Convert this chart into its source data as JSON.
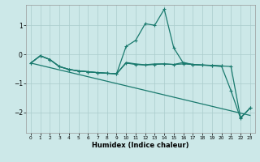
{
  "xlabel": "Humidex (Indice chaleur)",
  "bg_color": "#cce8e8",
  "grid_color": "#aacccc",
  "line_color": "#1a7a6e",
  "xlim": [
    -0.5,
    23.5
  ],
  "ylim": [
    -2.7,
    1.7
  ],
  "yticks": [
    -2,
    -1,
    0,
    1
  ],
  "xticks": [
    0,
    1,
    2,
    3,
    4,
    5,
    6,
    7,
    8,
    9,
    10,
    11,
    12,
    13,
    14,
    15,
    16,
    17,
    18,
    19,
    20,
    21,
    22,
    23
  ],
  "line1_x": [
    0,
    1,
    2,
    3,
    4,
    5,
    6,
    7,
    8,
    9,
    10,
    11,
    12,
    13,
    14,
    15,
    16,
    17,
    18,
    19,
    20,
    21,
    22,
    23
  ],
  "line1_y": [
    -0.3,
    -0.05,
    -0.18,
    -0.42,
    -0.52,
    -0.57,
    -0.6,
    -0.63,
    -0.65,
    -0.67,
    -0.3,
    -0.35,
    -0.37,
    -0.35,
    -0.33,
    -0.35,
    -0.33,
    -0.35,
    -0.37,
    -0.38,
    -0.4,
    -0.42,
    -2.18,
    -1.85
  ],
  "line2_x": [
    0,
    1,
    2,
    3,
    4,
    5,
    6,
    7,
    8,
    9,
    10,
    11,
    12,
    13,
    14,
    15,
    16,
    17,
    18,
    19,
    20,
    21,
    22,
    23
  ],
  "line2_y": [
    -0.3,
    -0.05,
    -0.18,
    -0.42,
    -0.52,
    -0.57,
    -0.6,
    -0.63,
    -0.65,
    -0.67,
    0.27,
    0.48,
    1.05,
    1.0,
    1.55,
    0.22,
    -0.3,
    -0.35,
    -0.37,
    -0.38,
    -0.4,
    -1.25,
    -2.2,
    -1.85
  ],
  "line3_x": [
    0,
    1,
    2,
    3,
    4,
    5,
    6,
    7,
    8,
    9,
    10,
    11,
    12,
    13,
    14,
    15,
    16,
    17,
    18,
    19,
    20
  ],
  "line3_y": [
    -0.3,
    -0.05,
    -0.18,
    -0.42,
    -0.52,
    -0.57,
    -0.6,
    -0.63,
    -0.65,
    -0.67,
    -0.28,
    -0.33,
    -0.36,
    -0.33,
    -0.33,
    -0.35,
    -0.28,
    -0.35,
    -0.37,
    -0.39,
    -0.42
  ],
  "line4_x": [
    0,
    23
  ],
  "line4_y": [
    -0.3,
    -2.1
  ]
}
